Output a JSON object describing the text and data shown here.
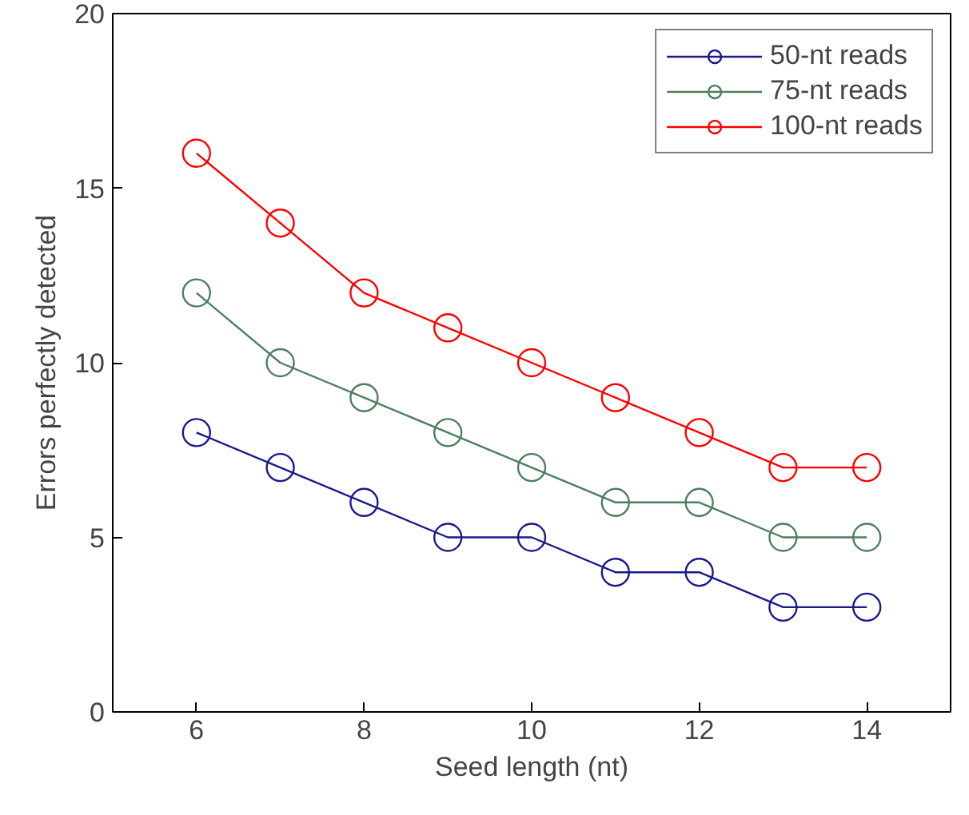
{
  "chart_data": {
    "type": "line",
    "xlabel": "Seed length (nt)",
    "ylabel": "Errors perfectly detected",
    "x": [
      6,
      7,
      8,
      9,
      10,
      11,
      12,
      13,
      14
    ],
    "series": [
      {
        "name": "50-nt reads",
        "color": "#1a1a8c",
        "values": [
          8,
          7,
          6,
          5,
          5,
          4,
          4,
          3,
          3
        ]
      },
      {
        "name": "75-nt reads",
        "color": "#4d7f5e",
        "values": [
          12,
          10,
          9,
          8,
          7,
          6,
          6,
          5,
          5
        ]
      },
      {
        "name": "100-nt reads",
        "color": "#ff0000",
        "values": [
          16,
          14,
          12,
          11,
          10,
          9,
          8,
          7,
          7
        ]
      }
    ],
    "xlim": [
      5,
      15
    ],
    "xticks": [
      6,
      8,
      10,
      12,
      14
    ],
    "ylim": [
      0,
      20
    ],
    "yticks": [
      0,
      5,
      10,
      15,
      20
    ],
    "grid": false,
    "legend": "top right",
    "marker": "circle",
    "line_style": "solid"
  }
}
